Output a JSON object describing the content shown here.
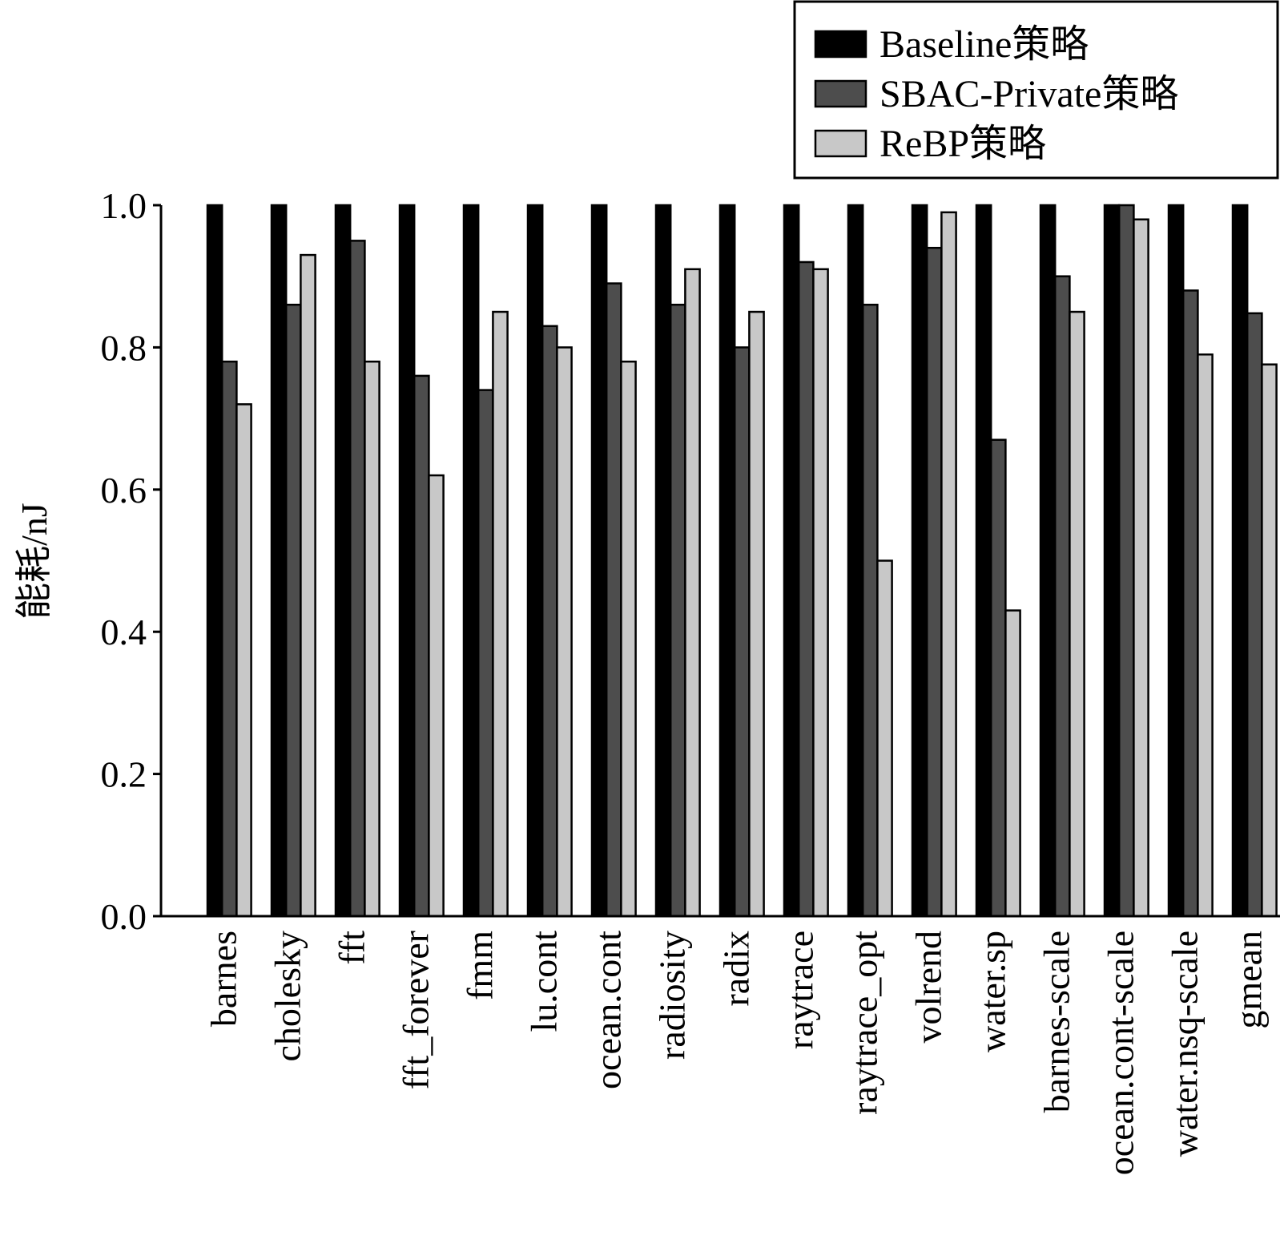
{
  "chart_data": {
    "type": "bar",
    "title": "",
    "xlabel": "",
    "ylabel": "能耗/nJ",
    "ylim": [
      0,
      1.0
    ],
    "yticks": [
      "0.0",
      "0.2",
      "0.4",
      "0.6",
      "0.8",
      "1.0"
    ],
    "grid": false,
    "legend_position": "top-right",
    "categories": [
      "barnes",
      "cholesky",
      "fft",
      "fft_forever",
      "fmm",
      "lu.cont",
      "ocean.cont",
      "radiosity",
      "radix",
      "raytrace",
      "raytrace_opt",
      "volrend",
      "water.sp",
      "barnes-scale",
      "ocean.cont-scale",
      "water.nsq-scale",
      "gmean"
    ],
    "series": [
      {
        "name": "Baseline策略",
        "color": "#000000",
        "values": [
          1.0,
          1.0,
          1.0,
          1.0,
          1.0,
          1.0,
          1.0,
          1.0,
          1.0,
          1.0,
          1.0,
          1.0,
          1.0,
          1.0,
          1.0,
          1.0,
          1.0
        ]
      },
      {
        "name": "SBAC-Private策略",
        "color": "#4d4d4d",
        "values": [
          0.78,
          0.86,
          0.95,
          0.76,
          0.74,
          0.83,
          0.89,
          0.86,
          0.8,
          0.92,
          0.86,
          0.94,
          0.67,
          0.9,
          1.0,
          0.88,
          0.848
        ]
      },
      {
        "name": "ReBP策略",
        "color": "#c8c8c8",
        "values": [
          0.72,
          0.93,
          0.78,
          0.62,
          0.85,
          0.8,
          0.78,
          0.91,
          0.85,
          0.91,
          0.5,
          0.99,
          0.43,
          0.85,
          0.98,
          0.79,
          0.776
        ]
      }
    ]
  }
}
